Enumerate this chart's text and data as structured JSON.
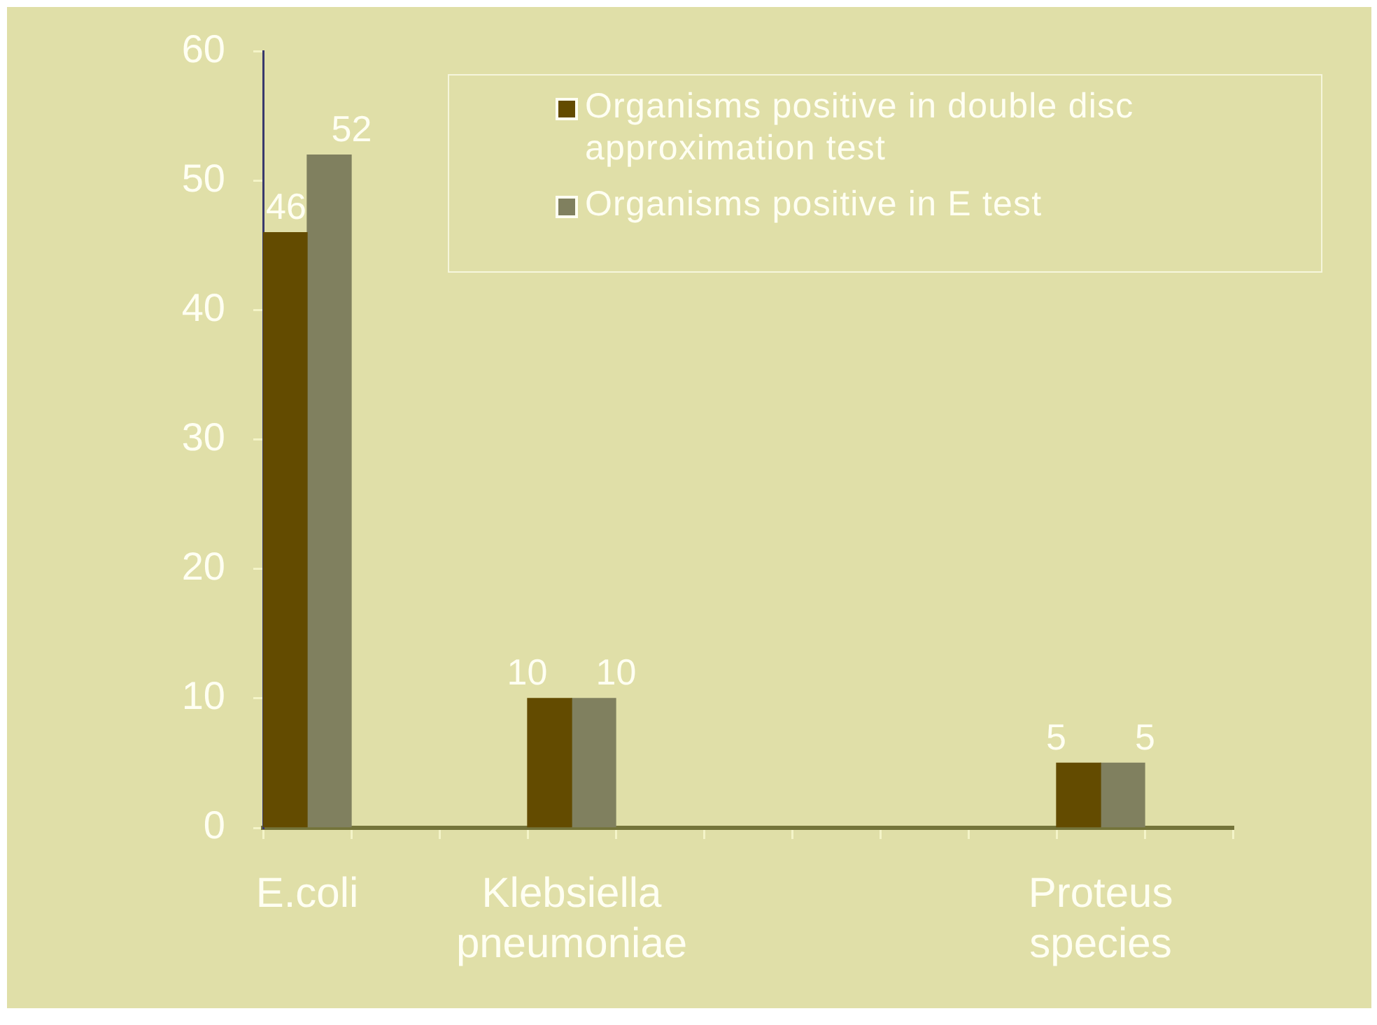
{
  "chart_data": {
    "type": "bar",
    "categories": [
      "E.coli",
      null,
      null,
      "Klebsiella pneumoniae",
      null,
      null,
      null,
      null,
      null,
      "Proteus species",
      null
    ],
    "series": [
      {
        "name": "Organisms positive in double disc approximation test",
        "color": "#634b00",
        "values": [
          46,
          null,
          null,
          10,
          null,
          null,
          null,
          null,
          null,
          5,
          null
        ]
      },
      {
        "name": "Organisms positive in E test",
        "color": "#80805f",
        "values": [
          52,
          null,
          null,
          10,
          null,
          null,
          null,
          null,
          null,
          5,
          null
        ]
      }
    ],
    "ylim": [
      0,
      60
    ],
    "yticks": [
      0,
      10,
      20,
      30,
      40,
      50,
      60
    ],
    "data_labels": true,
    "legend": "top right"
  }
}
